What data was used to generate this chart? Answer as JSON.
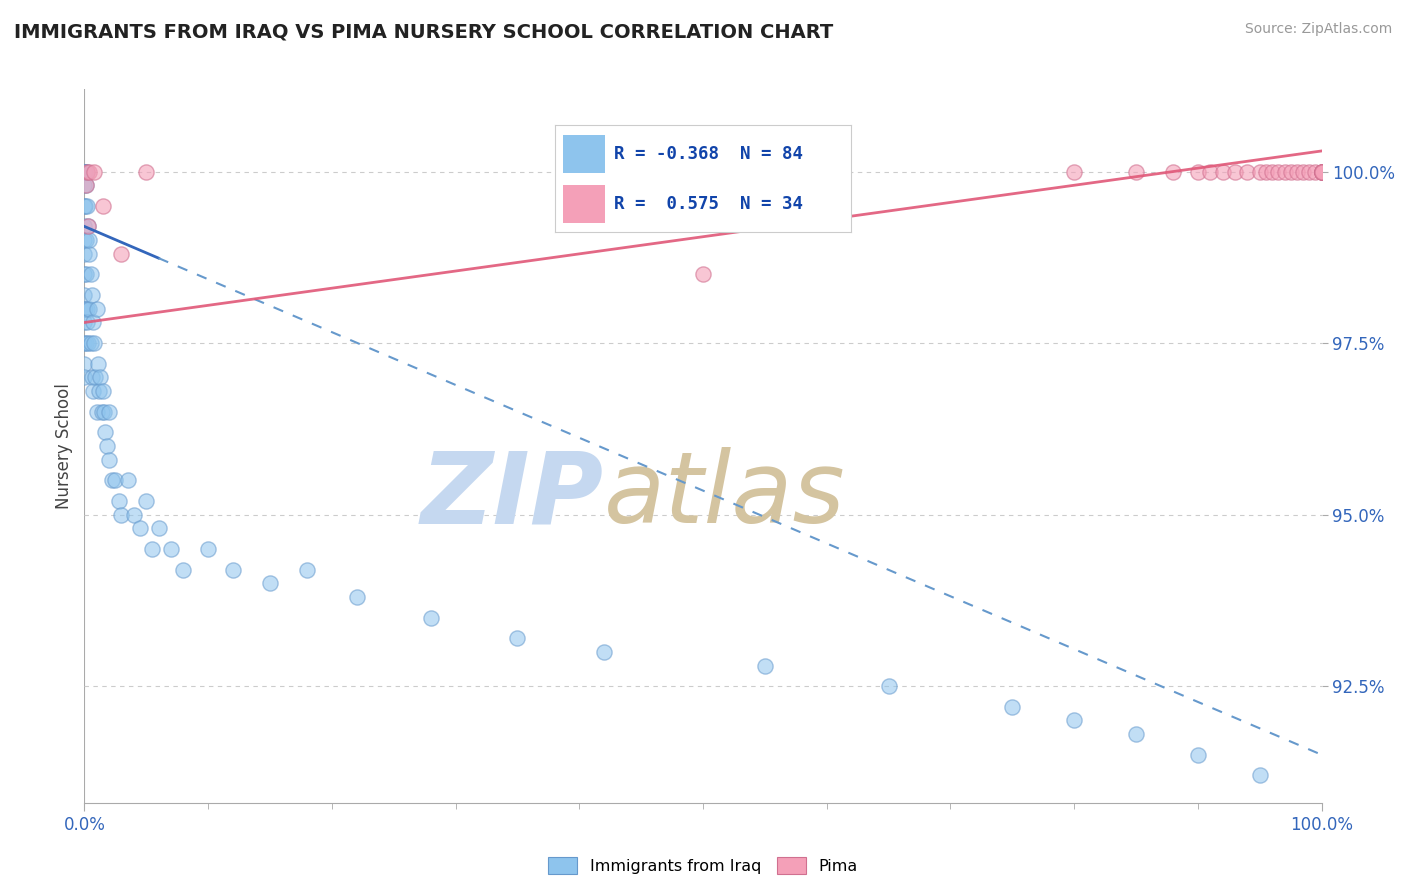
{
  "title": "IMMIGRANTS FROM IRAQ VS PIMA NURSERY SCHOOL CORRELATION CHART",
  "source_text": "Source: ZipAtlas.com",
  "ylabel": "Nursery School",
  "xlim": [
    0.0,
    100.0
  ],
  "ylim": [
    90.8,
    101.2
  ],
  "yticks": [
    92.5,
    95.0,
    97.5,
    100.0
  ],
  "ytick_labels": [
    "92.5%",
    "95.0%",
    "97.5%",
    "100.0%"
  ],
  "xtick_labels": [
    "0.0%",
    "100.0%"
  ],
  "legend_r_blue": "-0.368",
  "legend_n_blue": "84",
  "legend_r_pink": " 0.575",
  "legend_n_pink": "34",
  "blue_color": "#8EC4ED",
  "pink_color": "#F4A0B8",
  "trendline_blue_solid_color": "#3366BB",
  "trendline_blue_dash_color": "#6699CC",
  "trendline_pink_color": "#E05878",
  "watermark_zip_color": "#C5D8F0",
  "watermark_atlas_color": "#D4C4A0",
  "blue_scatter_x": [
    0.0,
    0.0,
    0.0,
    0.0,
    0.0,
    0.0,
    0.0,
    0.0,
    0.0,
    0.0,
    0.0,
    0.0,
    0.0,
    0.0,
    0.0,
    0.0,
    0.0,
    0.0,
    0.0,
    0.0,
    0.05,
    0.05,
    0.05,
    0.1,
    0.1,
    0.1,
    0.15,
    0.15,
    0.2,
    0.2,
    0.25,
    0.25,
    0.3,
    0.3,
    0.35,
    0.4,
    0.4,
    0.5,
    0.5,
    0.6,
    0.6,
    0.7,
    0.7,
    0.8,
    0.9,
    1.0,
    1.0,
    1.1,
    1.2,
    1.3,
    1.4,
    1.5,
    1.6,
    1.7,
    1.8,
    2.0,
    2.0,
    2.2,
    2.5,
    2.8,
    3.0,
    3.5,
    4.0,
    4.5,
    5.0,
    5.5,
    6.0,
    7.0,
    8.0,
    10.0,
    12.0,
    15.0,
    18.0,
    22.0,
    28.0,
    35.0,
    42.0,
    55.0,
    65.0,
    75.0,
    80.0,
    85.0,
    90.0,
    95.0
  ],
  "blue_scatter_y": [
    100.0,
    100.0,
    100.0,
    100.0,
    100.0,
    100.0,
    100.0,
    100.0,
    99.8,
    99.5,
    99.2,
    99.0,
    98.8,
    98.5,
    98.2,
    98.0,
    97.8,
    97.5,
    97.2,
    97.0,
    100.0,
    99.5,
    98.0,
    100.0,
    99.0,
    97.5,
    99.8,
    98.5,
    100.0,
    98.0,
    99.5,
    97.8,
    99.2,
    97.5,
    98.8,
    99.0,
    98.0,
    98.5,
    97.5,
    98.2,
    97.0,
    97.8,
    96.8,
    97.5,
    97.0,
    98.0,
    96.5,
    97.2,
    96.8,
    97.0,
    96.5,
    96.8,
    96.5,
    96.2,
    96.0,
    96.5,
    95.8,
    95.5,
    95.5,
    95.2,
    95.0,
    95.5,
    95.0,
    94.8,
    95.2,
    94.5,
    94.8,
    94.5,
    94.2,
    94.5,
    94.2,
    94.0,
    94.2,
    93.8,
    93.5,
    93.2,
    93.0,
    92.8,
    92.5,
    92.2,
    92.0,
    91.8,
    91.5,
    91.2
  ],
  "pink_scatter_x": [
    0.1,
    0.2,
    0.3,
    0.4,
    0.8,
    1.5,
    3.0,
    5.0,
    50.0,
    80.0,
    85.0,
    88.0,
    90.0,
    91.0,
    92.0,
    93.0,
    94.0,
    95.0,
    95.5,
    96.0,
    96.5,
    97.0,
    97.5,
    98.0,
    98.5,
    99.0,
    99.5,
    100.0,
    100.0,
    100.0,
    100.0,
    100.0,
    100.0,
    100.0
  ],
  "pink_scatter_y": [
    99.8,
    100.0,
    99.2,
    100.0,
    100.0,
    99.5,
    98.8,
    100.0,
    98.5,
    100.0,
    100.0,
    100.0,
    100.0,
    100.0,
    100.0,
    100.0,
    100.0,
    100.0,
    100.0,
    100.0,
    100.0,
    100.0,
    100.0,
    100.0,
    100.0,
    100.0,
    100.0,
    100.0,
    100.0,
    100.0,
    100.0,
    100.0,
    100.0,
    100.0
  ],
  "blue_trend_x0": 0.0,
  "blue_trend_y0": 99.2,
  "blue_trend_x1": 100.0,
  "blue_trend_y1": 91.5,
  "blue_solid_x_end": 6.0,
  "pink_trend_x0": 0.0,
  "pink_trend_y0": 97.8,
  "pink_trend_x1": 100.0,
  "pink_trend_y1": 100.3
}
